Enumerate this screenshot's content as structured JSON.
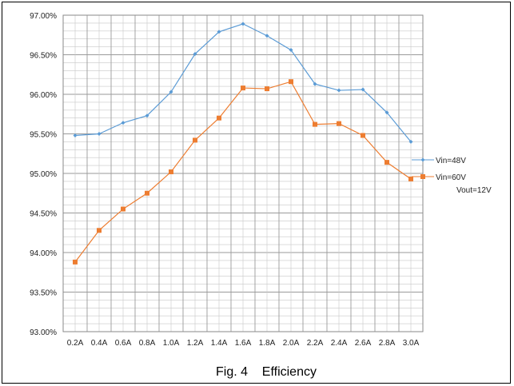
{
  "figure": {
    "caption": "Fig. 4    Efficiency"
  },
  "chart_data": {
    "type": "line",
    "categories": [
      "0.2A",
      "0.4A",
      "0.6A",
      "0.8A",
      "1.0A",
      "1.2A",
      "1.4A",
      "1.6A",
      "1.8A",
      "2.0A",
      "2.2A",
      "2.4A",
      "2.6A",
      "2.8A",
      "3.0A"
    ],
    "y_ticks": [
      "93.00%",
      "93.50%",
      "94.00%",
      "94.50%",
      "95.00%",
      "95.50%",
      "96.00%",
      "96.50%",
      "97.00%"
    ],
    "ylim": [
      93.0,
      97.0
    ],
    "grid": true,
    "legend_position": "right",
    "series": [
      {
        "name": "Vin=48V",
        "color": "#5b9bd5",
        "marker": "diamond",
        "values": [
          95.48,
          95.5,
          95.64,
          95.73,
          96.03,
          96.51,
          96.79,
          96.89,
          96.74,
          96.56,
          96.13,
          96.05,
          96.06,
          95.77,
          95.4
        ]
      },
      {
        "name": "Vin=60V",
        "color": "#ed7d31",
        "marker": "square",
        "values": [
          93.88,
          94.28,
          94.55,
          94.75,
          95.02,
          95.42,
          95.7,
          96.08,
          96.07,
          96.16,
          95.62,
          95.63,
          95.48,
          95.14,
          94.93
        ]
      }
    ],
    "legend_note": "Vout=12V"
  }
}
